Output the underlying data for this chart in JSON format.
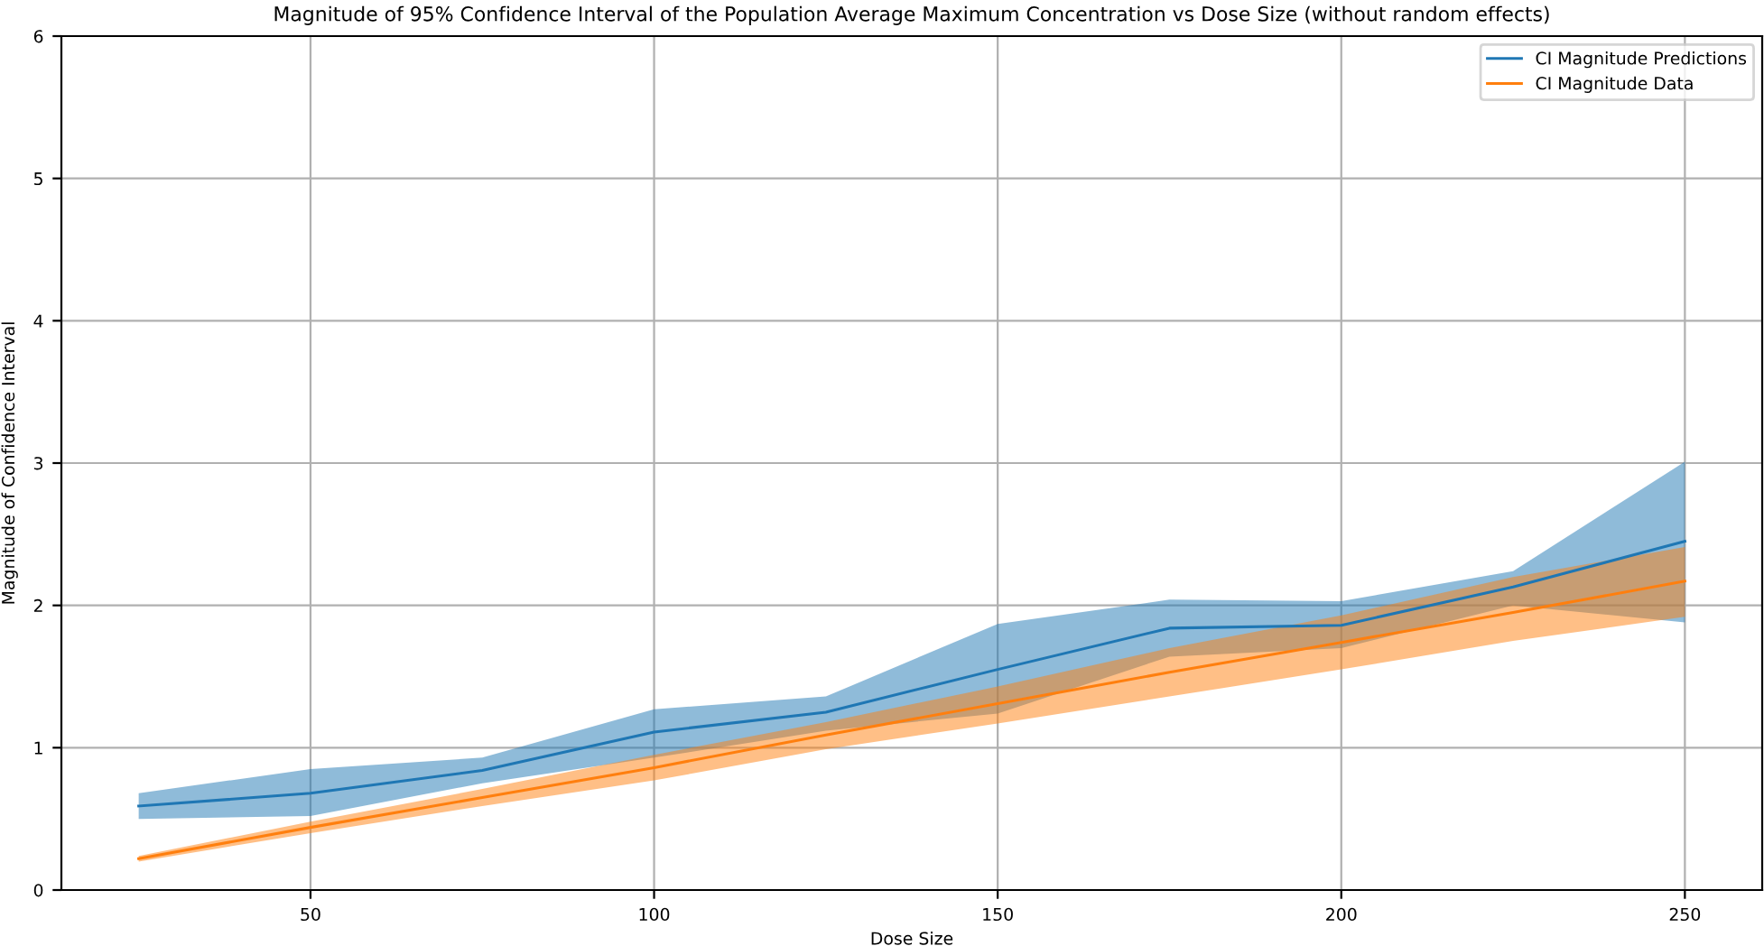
{
  "chart_data": {
    "type": "line",
    "title": "Magnitude of 95% Confidence Interval of the Population Average Maximum Concentration vs Dose Size (without random effects)",
    "xlabel": "Dose Size",
    "ylabel": "Magnitude of Confidence Interval",
    "x": [
      25,
      50,
      75,
      100,
      125,
      150,
      175,
      200,
      225,
      250
    ],
    "series": [
      {
        "name": "CI Magnitude Predictions",
        "color": "#1f77b4",
        "values": [
          0.59,
          0.68,
          0.84,
          1.11,
          1.25,
          1.55,
          1.84,
          1.86,
          2.13,
          2.45
        ],
        "lower": [
          0.5,
          0.52,
          0.75,
          0.93,
          1.12,
          1.24,
          1.64,
          1.7,
          2.0,
          1.88
        ],
        "upper": [
          0.68,
          0.85,
          0.93,
          1.27,
          1.36,
          1.87,
          2.04,
          2.03,
          2.24,
          3.01
        ]
      },
      {
        "name": "CI Magnitude Data",
        "color": "#ff7f0e",
        "values": [
          0.22,
          0.44,
          0.65,
          0.86,
          1.09,
          1.31,
          1.53,
          1.74,
          1.95,
          2.17
        ],
        "lower": [
          0.2,
          0.4,
          0.59,
          0.77,
          0.99,
          1.17,
          1.36,
          1.55,
          1.75,
          1.92
        ],
        "upper": [
          0.24,
          0.48,
          0.71,
          0.95,
          1.18,
          1.43,
          1.7,
          1.93,
          2.2,
          2.41
        ]
      }
    ],
    "xlim": [
      13.75,
      261.25
    ],
    "xticks": [
      50,
      100,
      150,
      200,
      250
    ],
    "ylim": [
      0,
      6
    ],
    "yticks": [
      0,
      1,
      2,
      3,
      4,
      5,
      6
    ],
    "grid": true,
    "legend": "top right",
    "marker": "none",
    "line_style": "solid"
  }
}
